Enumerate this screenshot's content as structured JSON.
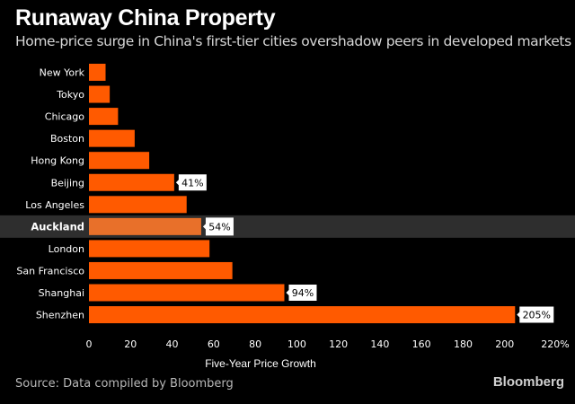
{
  "header": {
    "title": "Runaway China Property",
    "subtitle": "Home-price surge in China's first-tier cities overshadow peers in developed markets"
  },
  "footer": {
    "source": "Source: Data compiled by Bloomberg",
    "brand": "Bloomberg"
  },
  "colors": {
    "bar": "#ff5a00",
    "highlight_bar": "#e8702a",
    "highlight_band": "#2e2e2e",
    "axis_text": "#ffffff",
    "callout_bg": "#ffffff",
    "callout_text": "#000000"
  },
  "chart_data": {
    "type": "bar",
    "orientation": "horizontal",
    "title": "Runaway China Property",
    "subtitle": "Home-price surge in China's first-tier cities overshadow peers in developed markets",
    "xlabel": "Five-Year Price Growth",
    "ylabel": "",
    "xlim": [
      0,
      220
    ],
    "x_ticks": [
      "0",
      "20",
      "40",
      "60",
      "80",
      "100",
      "120",
      "140",
      "160",
      "180",
      "200",
      "220%"
    ],
    "categories": [
      "New York",
      "Tokyo",
      "Chicago",
      "Boston",
      "Hong Kong",
      "Beijing",
      "Los Angeles",
      "Auckland",
      "London",
      "San Francisco",
      "Shanghai",
      "Shenzhen"
    ],
    "values": [
      8,
      10,
      14,
      22,
      29,
      41,
      47,
      54,
      58,
      69,
      94,
      205
    ],
    "highlighted": "Auckland",
    "data_labels": [
      {
        "category": "Beijing",
        "label": "41%"
      },
      {
        "category": "Auckland",
        "label": "54%"
      },
      {
        "category": "Shanghai",
        "label": "94%"
      },
      {
        "category": "Shenzhen",
        "label": "205%"
      }
    ],
    "grid": false,
    "legend": "none"
  }
}
